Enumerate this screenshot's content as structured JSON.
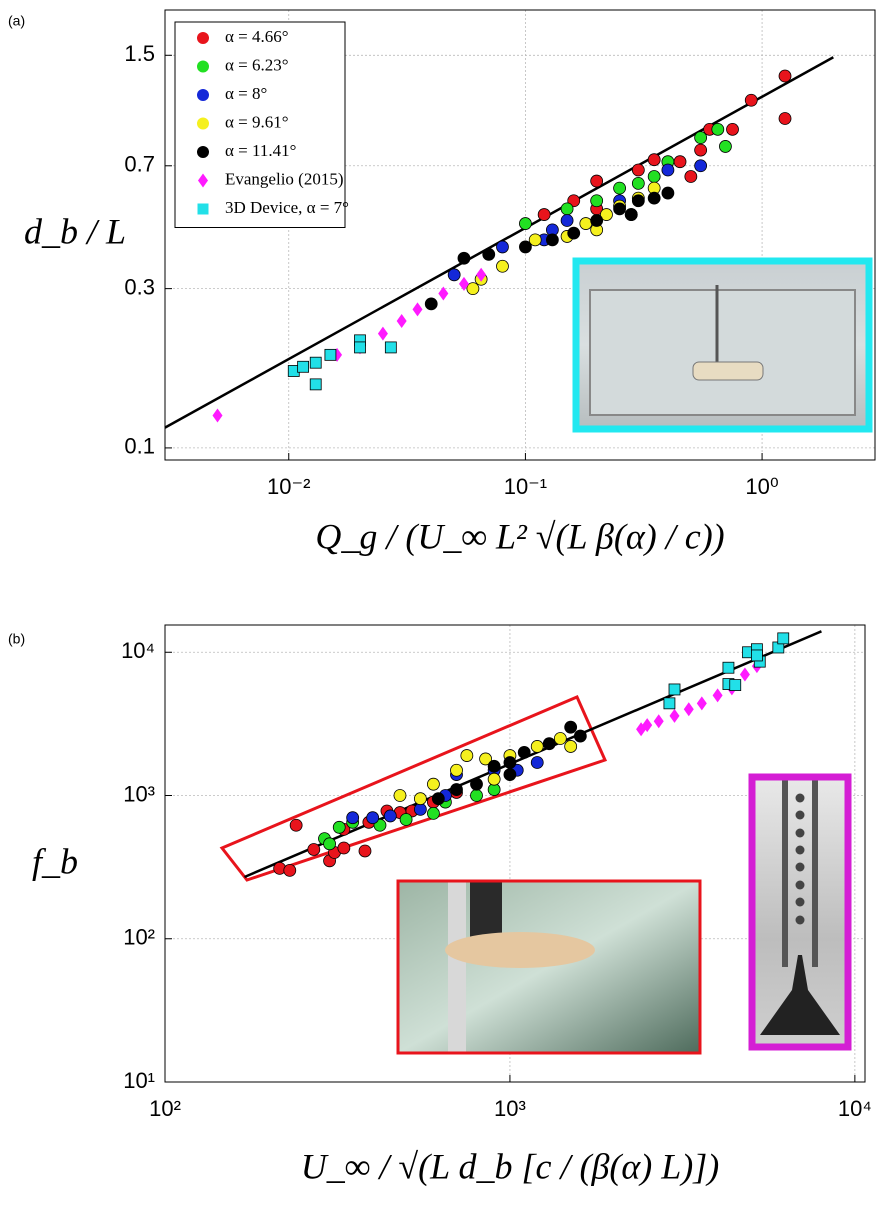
{
  "chart_data": [
    {
      "type": "scatter",
      "panel_label": "(a)",
      "xscale": "log",
      "yscale": "log",
      "grid": true,
      "legend": "upper left",
      "xlabel": "Q_g / (U_∞ L² √(L β(α) / c))",
      "ylabel": "d_b / L",
      "xlim": [
        0.003,
        3
      ],
      "ylim": [
        0.092,
        2.05
      ],
      "xticks": [
        {
          "value": 0.01,
          "label": "10⁻²"
        },
        {
          "value": 0.1,
          "label": "10⁻¹"
        },
        {
          "value": 1,
          "label": "10⁰"
        }
      ],
      "yticks": [
        0.1,
        0.3,
        0.7,
        1.5
      ],
      "fit_line": {
        "color": "#000000",
        "x": [
          0.003,
          2
        ],
        "y": [
          0.115,
          1.48
        ]
      },
      "series": [
        {
          "name": "α = 4.66°",
          "color": "#e8141c",
          "marker": "o",
          "x": [
            0.12,
            0.16,
            0.2,
            0.3,
            0.45,
            0.5,
            0.6,
            0.75,
            0.9,
            1.25,
            1.25,
            0.2,
            0.55,
            0.35
          ],
          "y": [
            0.5,
            0.55,
            0.52,
            0.68,
            0.72,
            0.65,
            0.9,
            0.9,
            1.1,
            0.97,
            1.3,
            0.63,
            0.78,
            0.73
          ]
        },
        {
          "name": "α = 6.23°",
          "color": "#22e022",
          "marker": "o",
          "x": [
            0.1,
            0.15,
            0.2,
            0.25,
            0.3,
            0.35,
            0.4,
            0.55,
            0.65,
            0.7
          ],
          "y": [
            0.47,
            0.52,
            0.55,
            0.6,
            0.62,
            0.65,
            0.72,
            0.85,
            0.9,
            0.8
          ]
        },
        {
          "name": "α = 8°",
          "color": "#1428d8",
          "marker": "o",
          "x": [
            0.05,
            0.08,
            0.12,
            0.15,
            0.25,
            0.4,
            0.55,
            0.13
          ],
          "y": [
            0.33,
            0.4,
            0.42,
            0.48,
            0.55,
            0.68,
            0.7,
            0.45
          ]
        },
        {
          "name": "α = 9.61°",
          "color": "#f5f01e",
          "marker": "o",
          "x": [
            0.06,
            0.065,
            0.08,
            0.11,
            0.15,
            0.18,
            0.22,
            0.25,
            0.3,
            0.35,
            0.28,
            0.2
          ],
          "y": [
            0.3,
            0.32,
            0.35,
            0.42,
            0.43,
            0.47,
            0.5,
            0.53,
            0.56,
            0.6,
            0.5,
            0.45
          ]
        },
        {
          "name": "α = 11.41°",
          "color": "#000000",
          "marker": "o",
          "x": [
            0.04,
            0.055,
            0.07,
            0.1,
            0.13,
            0.16,
            0.2,
            0.25,
            0.3,
            0.35,
            0.4,
            0.28
          ],
          "y": [
            0.27,
            0.37,
            0.38,
            0.4,
            0.42,
            0.44,
            0.48,
            0.52,
            0.55,
            0.56,
            0.58,
            0.5
          ]
        },
        {
          "name": "Evangelio (2015)",
          "color": "#ff1aff",
          "marker": "d",
          "x": [
            0.005,
            0.016,
            0.02,
            0.025,
            0.03,
            0.035,
            0.045,
            0.055,
            0.065
          ],
          "y": [
            0.125,
            0.19,
            0.2,
            0.22,
            0.24,
            0.26,
            0.29,
            0.31,
            0.33
          ]
        },
        {
          "name": "3D Device, α = 7°",
          "color": "#22e0e8",
          "marker": "s",
          "x": [
            0.0105,
            0.0115,
            0.013,
            0.013,
            0.015,
            0.02,
            0.02,
            0.027
          ],
          "y": [
            0.17,
            0.175,
            0.18,
            0.155,
            0.19,
            0.21,
            0.2,
            0.2
          ]
        }
      ]
    },
    {
      "type": "scatter",
      "panel_label": "(b)",
      "xscale": "log",
      "yscale": "log",
      "grid": true,
      "xlabel": "U_∞ / √(L d_b [c / (β(α) L)])",
      "ylabel": "f_b",
      "xlim": [
        100,
        10700
      ],
      "ylim": [
        10,
        15500
      ],
      "xticks": [
        {
          "value": 100,
          "label": "10²"
        },
        {
          "value": 1000,
          "label": "10³"
        },
        {
          "value": 10000,
          "label": "10⁴"
        }
      ],
      "yticks": [
        {
          "value": 10,
          "label": "10¹"
        },
        {
          "value": 100,
          "label": "10²"
        },
        {
          "value": 1000,
          "label": "10³"
        },
        {
          "value": 10000,
          "label": "10⁴"
        }
      ],
      "fit_line": {
        "color": "#000000",
        "x": [
          170,
          8000
        ],
        "y": [
          270,
          14000
        ]
      },
      "series": [
        {
          "color": "#e8141c",
          "marker": "o",
          "x": [
            215,
            230,
            240,
            270,
            300,
            310,
            330,
            330,
            380,
            390,
            440,
            480,
            520,
            600,
            700
          ],
          "y": [
            310,
            300,
            620,
            420,
            350,
            400,
            430,
            580,
            410,
            650,
            780,
            760,
            780,
            900,
            1050
          ]
        },
        {
          "color": "#22e022",
          "marker": "o",
          "x": [
            290,
            300,
            320,
            350,
            420,
            500,
            600,
            650,
            800,
            900
          ],
          "y": [
            500,
            460,
            600,
            650,
            620,
            680,
            750,
            900,
            1000,
            1100
          ]
        },
        {
          "color": "#1428d8",
          "marker": "o",
          "x": [
            350,
            400,
            450,
            550,
            650,
            700,
            900,
            1050,
            1200
          ],
          "y": [
            700,
            700,
            720,
            800,
            1000,
            1400,
            1500,
            1500,
            1700
          ]
        },
        {
          "color": "#f5f01e",
          "marker": "o",
          "x": [
            480,
            550,
            600,
            700,
            750,
            850,
            1000,
            1200,
            1400,
            1500,
            900
          ],
          "y": [
            1000,
            950,
            1200,
            1500,
            1900,
            1800,
            1900,
            2200,
            2500,
            2200,
            1300
          ]
        },
        {
          "color": "#000000",
          "marker": "o",
          "x": [
            620,
            700,
            800,
            900,
            1000,
            1100,
            1300,
            1500,
            1600,
            1000
          ],
          "y": [
            950,
            1100,
            1200,
            1600,
            1700,
            2000,
            2300,
            3000,
            2600,
            1400
          ]
        },
        {
          "color": "#ff1aff",
          "marker": "d",
          "x": [
            2400,
            2500,
            2700,
            3000,
            3300,
            3600,
            4000,
            4400,
            4800,
            5200
          ],
          "y": [
            2900,
            3100,
            3300,
            3600,
            4000,
            4400,
            5000,
            5600,
            7000,
            8000
          ]
        },
        {
          "color": "#22e0e8",
          "marker": "s",
          "x": [
            2900,
            3000,
            4300,
            4300,
            4500,
            4900,
            5200,
            5300,
            5200,
            6000,
            6200
          ],
          "y": [
            4400,
            5500,
            7800,
            6000,
            5900,
            10000,
            10500,
            8600,
            9500,
            10800,
            12500
          ]
        }
      ]
    }
  ]
}
